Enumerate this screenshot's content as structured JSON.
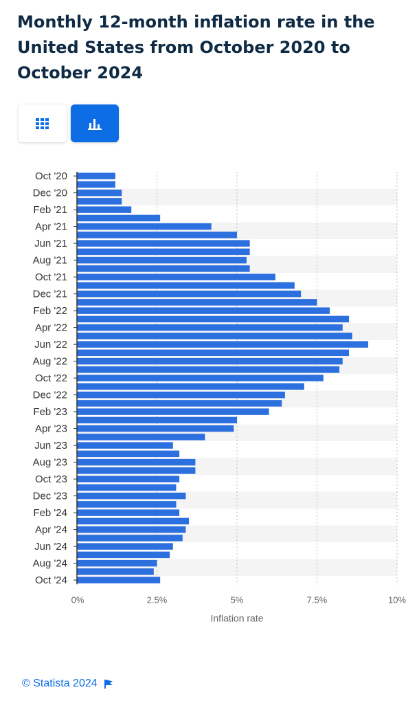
{
  "title": "Monthly 12-month inflation rate in the United States from October 2020 to October 2024",
  "view_toggle": {
    "table_icon": "grid-icon",
    "chart_icon": "bar-chart-icon",
    "selected": "chart"
  },
  "colors": {
    "bar": "#2c6fdf",
    "accent": "#0d6de5",
    "title": "#0f2a44",
    "band": "#f4f4f4"
  },
  "chart_data": {
    "type": "bar",
    "orientation": "horizontal",
    "categories": [
      "Oct '20",
      "Nov '20",
      "Dec '20",
      "Jan '21",
      "Feb '21",
      "Mar '21",
      "Apr '21",
      "May '21",
      "Jun '21",
      "Jul '21",
      "Aug '21",
      "Sep '21",
      "Oct '21",
      "Nov '21",
      "Dec '21",
      "Jan '22",
      "Feb '22",
      "Mar '22",
      "Apr '22",
      "May '22",
      "Jun '22",
      "Jul '22",
      "Aug '22",
      "Sep '22",
      "Oct '22",
      "Nov '22",
      "Dec '22",
      "Jan '23",
      "Feb '23",
      "Mar '23",
      "Apr '23",
      "May '23",
      "Jun '23",
      "Jul '23",
      "Aug '23",
      "Sep '23",
      "Oct '23",
      "Nov '23",
      "Dec '23",
      "Jan '24",
      "Feb '24",
      "Mar '24",
      "Apr '24",
      "May '24",
      "Jun '24",
      "Jul '24",
      "Aug '24",
      "Sep '24",
      "Oct '24"
    ],
    "tick_labels": [
      "Oct '20",
      "Dec '20",
      "Feb '21",
      "Apr '21",
      "Jun '21",
      "Aug '21",
      "Oct '21",
      "Dec '21",
      "Feb '22",
      "Apr '22",
      "Jun '22",
      "Aug '22",
      "Oct '22",
      "Dec '22",
      "Feb '23",
      "Apr '23",
      "Jun '23",
      "Aug '23",
      "Oct '23",
      "Dec '23",
      "Feb '24",
      "Apr '24",
      "Jun '24",
      "Aug '24",
      "Oct '24"
    ],
    "values": [
      1.2,
      1.2,
      1.4,
      1.4,
      1.7,
      2.6,
      4.2,
      5.0,
      5.4,
      5.4,
      5.3,
      5.4,
      6.2,
      6.8,
      7.0,
      7.5,
      7.9,
      8.5,
      8.3,
      8.6,
      9.1,
      8.5,
      8.3,
      8.2,
      7.7,
      7.1,
      6.5,
      6.4,
      6.0,
      5.0,
      4.9,
      4.0,
      3.0,
      3.2,
      3.7,
      3.7,
      3.2,
      3.1,
      3.4,
      3.1,
      3.2,
      3.5,
      3.4,
      3.3,
      3.0,
      2.9,
      2.5,
      2.4,
      2.6
    ],
    "xlabel": "Inflation rate",
    "x_ticks": [
      "0%",
      "2.5%",
      "5%",
      "7.5%",
      "10%"
    ],
    "x_tick_values": [
      0,
      2.5,
      5,
      7.5,
      10
    ],
    "xlim": [
      0,
      10
    ],
    "grid": true
  },
  "footer": {
    "copyright": "© Statista 2024",
    "flag_icon": "flag-icon"
  }
}
